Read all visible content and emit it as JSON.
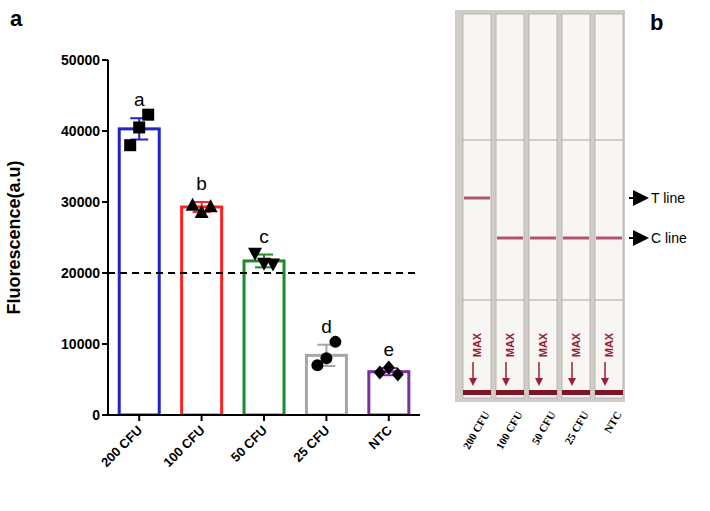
{
  "chart_data": {
    "type": "bar",
    "panel_label": "a",
    "categories": [
      "200 CFU",
      "100 CFU",
      "50 CFU",
      "25 CFU",
      "NTC"
    ],
    "values": [
      40300,
      29300,
      21700,
      8400,
      6100
    ],
    "errors": [
      1500,
      700,
      900,
      1500,
      500
    ],
    "points": [
      [
        38000,
        40500,
        42300
      ],
      [
        29600,
        28600,
        29400
      ],
      [
        22700,
        21300,
        21200
      ],
      [
        7000,
        8000,
        10300
      ],
      [
        6000,
        6700,
        5700
      ]
    ],
    "marker": [
      "square",
      "triangle",
      "triangle-down",
      "circle",
      "diamond"
    ],
    "colors": [
      "#2323c8",
      "#ff2222",
      "#1a8c2a",
      "#a6a6a6",
      "#7a2ea0"
    ],
    "letters": [
      "a",
      "b",
      "c",
      "d",
      "e"
    ],
    "threshold": 20000,
    "y_label": "Fluorescence(a.u)",
    "ylim": [
      0,
      50000
    ],
    "yticks": [
      0,
      10000,
      20000,
      30000,
      40000,
      50000
    ],
    "grid": false
  },
  "figure_b": {
    "panel_label": "b",
    "strip_labels": [
      "200 CFU",
      "100 CFU",
      "50 CFU",
      "25 CFU",
      "NTC"
    ],
    "strip_text": "MAX",
    "t_line": [
      true,
      false,
      false,
      false,
      false
    ],
    "c_line": [
      false,
      true,
      true,
      true,
      true
    ],
    "t_line_label": "T line",
    "c_line_label": "C line"
  }
}
